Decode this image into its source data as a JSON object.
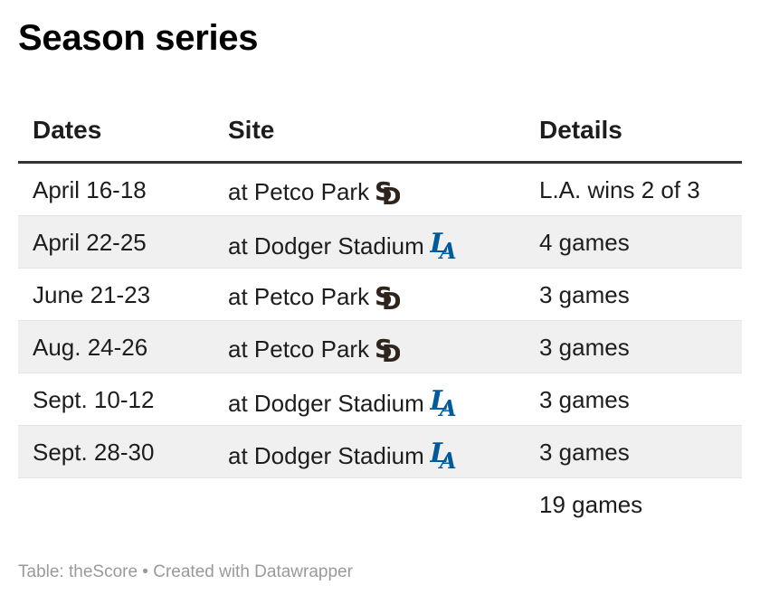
{
  "title": "Season series",
  "footer": "Table: theScore • Created with Datawrapper",
  "colors": {
    "padres": "#2f241d",
    "dodgers": "#005a9c",
    "alt_row": "#f0f0f0"
  },
  "chart_data": {
    "type": "table",
    "columns": [
      "Dates",
      "Site",
      "Details"
    ],
    "rows": [
      {
        "date": "April 16-18",
        "site": "at Petco Park",
        "logo": "padres-logo-icon",
        "details": "L.A. wins 2 of 3"
      },
      {
        "date": "April 22-25",
        "site": "at Dodger Stadium",
        "logo": "dodgers-logo-icon",
        "details": "4 games"
      },
      {
        "date": "June 21-23",
        "site": "at Petco Park",
        "logo": "padres-logo-icon",
        "details": "3 games"
      },
      {
        "date": "Aug. 24-26",
        "site": "at Petco Park",
        "logo": "padres-logo-icon",
        "details": "3 games"
      },
      {
        "date": "Sept. 10-12",
        "site": "at Dodger Stadium",
        "logo": "dodgers-logo-icon",
        "details": "3 games"
      },
      {
        "date": "Sept. 28-30",
        "site": "at Dodger Stadium",
        "logo": "dodgers-logo-icon",
        "details": "3 games"
      }
    ],
    "total": {
      "details": "19 games"
    }
  }
}
